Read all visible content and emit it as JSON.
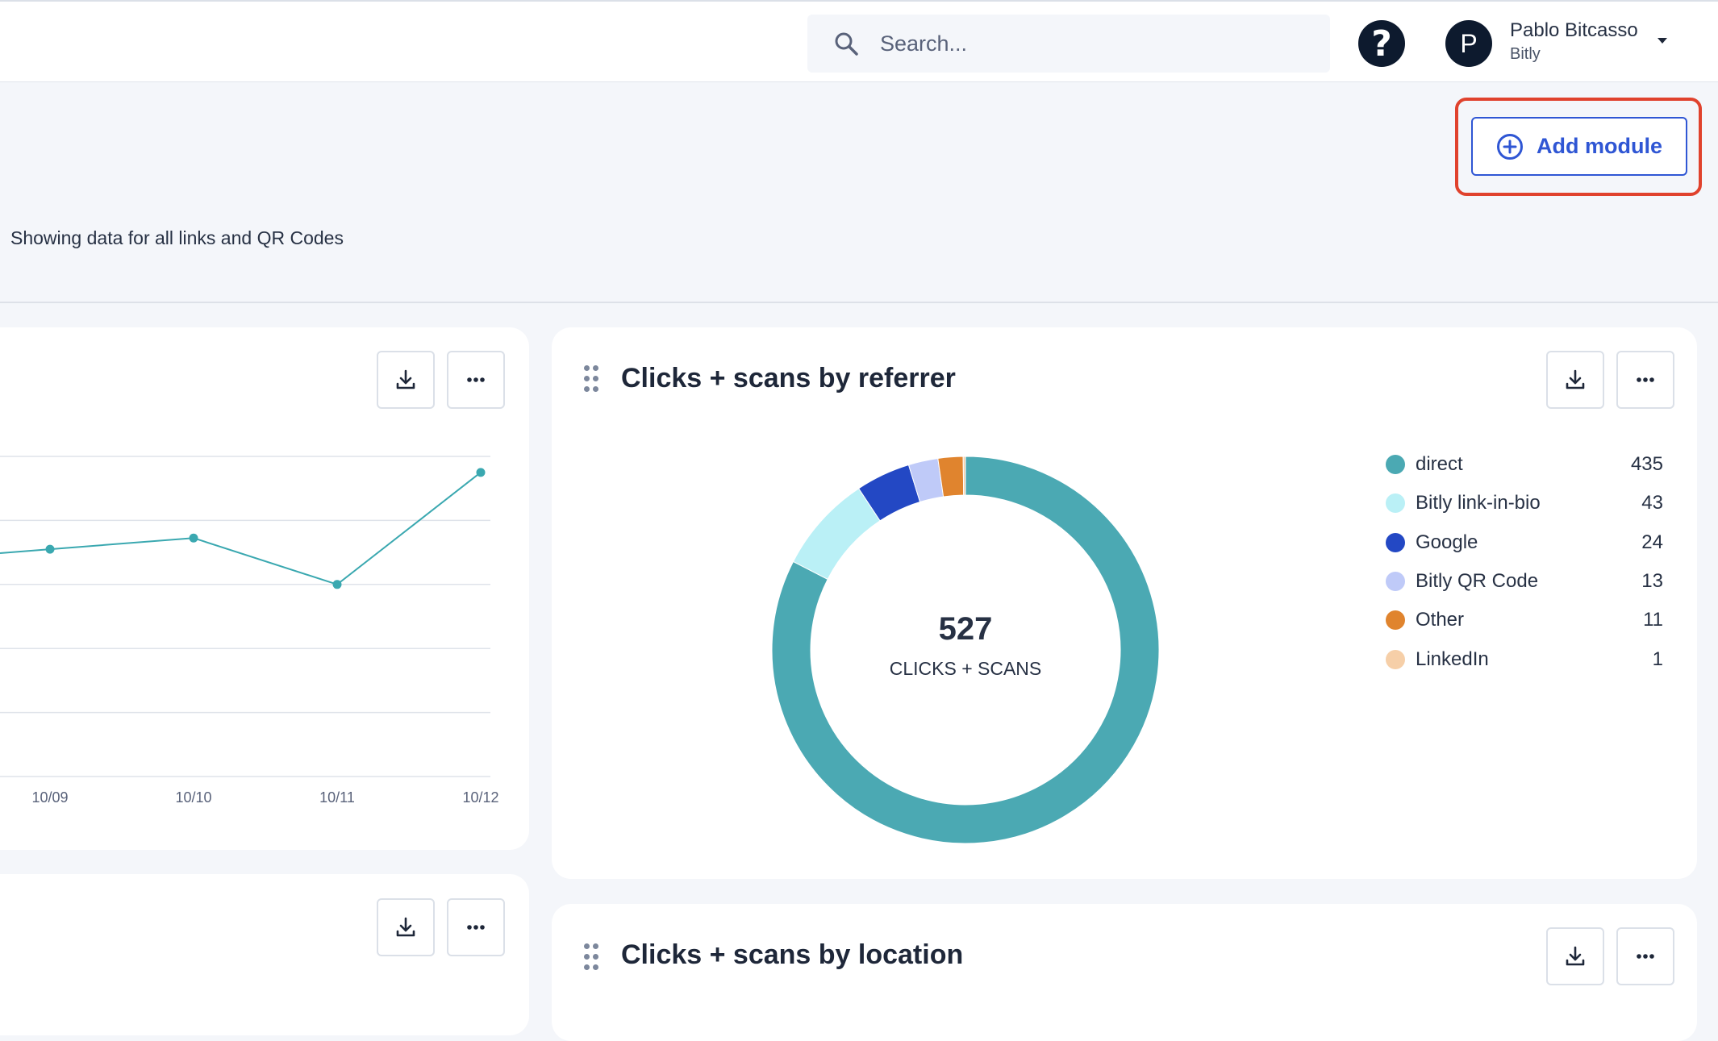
{
  "header": {
    "search": {
      "placeholder": "Search..."
    },
    "help_label": "?",
    "user": {
      "initial": "P",
      "name": "Pablo Bitcasso",
      "org": "Bitly"
    }
  },
  "toolbar": {
    "add_module_label": "Add module"
  },
  "page": {
    "subtitle": "Showing data for all links and QR Codes"
  },
  "line_card": {
    "chart_data": {
      "type": "line",
      "title": "",
      "x": [
        "10/09",
        "10/10",
        "10/11",
        "10/12"
      ],
      "values": [
        21,
        24.5,
        10,
        45
      ],
      "ylim": [
        -50,
        50
      ],
      "grid": true,
      "xlabel": "",
      "ylabel": ""
    }
  },
  "referrer_card": {
    "title": "Clicks + scans by referrer",
    "total": "527",
    "total_caption": "CLICKS + SCANS",
    "chart_data": {
      "type": "pie",
      "title": "Clicks + scans by referrer",
      "categories": [
        "direct",
        "Bitly link-in-bio",
        "Google",
        "Bitly QR Code",
        "Other",
        "LinkedIn"
      ],
      "values": [
        435,
        43,
        24,
        13,
        11,
        1
      ],
      "colors": [
        "#4ba9b3",
        "#baf0f6",
        "#2348c4",
        "#bfcaf8",
        "#e0842e",
        "#f6cfa8"
      ]
    },
    "legend": [
      {
        "label": "direct",
        "value": "435"
      },
      {
        "label": "Bitly link-in-bio",
        "value": "43"
      },
      {
        "label": "Google",
        "value": "24"
      },
      {
        "label": "Bitly QR Code",
        "value": "13"
      },
      {
        "label": "Other",
        "value": "11"
      },
      {
        "label": "LinkedIn",
        "value": "1"
      }
    ]
  },
  "location_card": {
    "title": "Clicks + scans by location"
  },
  "colors": {
    "accent": "#2f56d4",
    "highlight": "#e0422d",
    "line": "#3aa8b0"
  },
  "icons": [
    "search-icon",
    "help-icon",
    "chevron-down-icon",
    "plus-circle-icon",
    "download-icon",
    "more-icon",
    "drag-handle-icon"
  ]
}
